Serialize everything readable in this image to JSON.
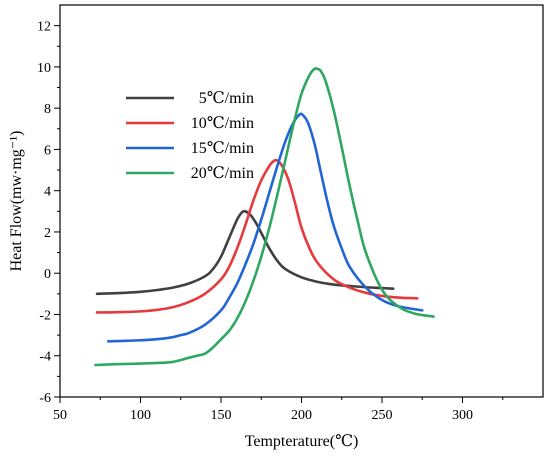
{
  "chart_data": {
    "type": "line",
    "title": "",
    "xlabel": "Tempterature(℃)",
    "ylabel": "Heat Flow(mw·mg⁻¹)",
    "xlim": [
      50,
      350
    ],
    "ylim": [
      -6,
      13
    ],
    "xticks": [
      50,
      100,
      150,
      200,
      250,
      300
    ],
    "yticks": [
      -6,
      -4,
      -2,
      0,
      2,
      4,
      6,
      8,
      10,
      12
    ],
    "grid": false,
    "legend": "top-left",
    "series": [
      {
        "name": "5℃/min",
        "color": "#404040",
        "x": [
          73,
          80,
          90,
          100,
          110,
          120,
          130,
          140,
          145,
          150,
          155,
          160,
          163,
          165,
          168,
          172,
          176,
          180,
          185,
          190,
          200,
          210,
          220,
          230,
          240,
          250,
          257
        ],
        "y": [
          -1.0,
          -0.98,
          -0.95,
          -0.9,
          -0.82,
          -0.7,
          -0.5,
          -0.15,
          0.2,
          0.8,
          1.7,
          2.6,
          2.95,
          3.0,
          2.85,
          2.4,
          1.8,
          1.2,
          0.6,
          0.2,
          -0.2,
          -0.42,
          -0.55,
          -0.62,
          -0.68,
          -0.72,
          -0.75
        ]
      },
      {
        "name": "10℃/min",
        "color": "#e8393c",
        "x": [
          73,
          80,
          90,
          100,
          110,
          120,
          130,
          140,
          150,
          155,
          160,
          165,
          170,
          175,
          180,
          183,
          185,
          188,
          192,
          196,
          200,
          205,
          210,
          220,
          230,
          240,
          250,
          260,
          272
        ],
        "y": [
          -1.9,
          -1.9,
          -1.88,
          -1.85,
          -1.78,
          -1.65,
          -1.4,
          -1.0,
          -0.3,
          0.3,
          1.2,
          2.3,
          3.5,
          4.5,
          5.2,
          5.45,
          5.45,
          5.2,
          4.5,
          3.4,
          2.2,
          1.2,
          0.5,
          -0.3,
          -0.7,
          -0.95,
          -1.1,
          -1.18,
          -1.22
        ]
      },
      {
        "name": "15℃/min",
        "color": "#2166d4",
        "x": [
          80,
          90,
          100,
          110,
          120,
          125,
          130,
          140,
          150,
          155,
          160,
          165,
          170,
          175,
          180,
          185,
          190,
          195,
          199,
          201,
          204,
          208,
          212,
          216,
          220,
          225,
          230,
          240,
          250,
          260,
          275
        ],
        "y": [
          -3.3,
          -3.28,
          -3.25,
          -3.2,
          -3.1,
          -3.0,
          -2.9,
          -2.5,
          -1.8,
          -1.2,
          -0.5,
          0.4,
          1.4,
          2.6,
          3.9,
          5.2,
          6.4,
          7.3,
          7.7,
          7.65,
          7.3,
          6.3,
          4.9,
          3.5,
          2.3,
          1.2,
          0.3,
          -0.7,
          -1.3,
          -1.6,
          -1.8
        ]
      },
      {
        "name": "20℃/min",
        "color": "#2ea860",
        "x": [
          72,
          80,
          90,
          100,
          110,
          120,
          130,
          135,
          140,
          145,
          150,
          155,
          160,
          165,
          170,
          175,
          180,
          185,
          190,
          195,
          200,
          205,
          208,
          210,
          212,
          215,
          220,
          225,
          230,
          235,
          240,
          250,
          260,
          270,
          282
        ],
        "y": [
          -4.45,
          -4.42,
          -4.4,
          -4.38,
          -4.35,
          -4.3,
          -4.1,
          -4.0,
          -3.9,
          -3.6,
          -3.2,
          -2.8,
          -2.2,
          -1.4,
          -0.4,
          0.8,
          2.2,
          3.8,
          5.5,
          7.2,
          8.7,
          9.6,
          9.9,
          9.9,
          9.8,
          9.3,
          7.9,
          6.1,
          4.2,
          2.5,
          1.0,
          -0.8,
          -1.6,
          -1.95,
          -2.1
        ]
      }
    ]
  }
}
